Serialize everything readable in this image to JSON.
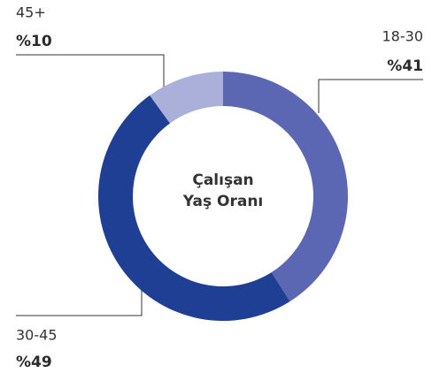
{
  "chart_data": {
    "type": "donut",
    "title": "Çalışan Yaş Oranı",
    "categories": [
      "18-30",
      "30-45",
      "45+"
    ],
    "values": [
      41,
      49,
      10
    ],
    "value_labels": [
      "%41",
      "%49",
      "%10"
    ],
    "colors": [
      "#5b67b3",
      "#1f3f94",
      "#aab0da"
    ]
  }
}
